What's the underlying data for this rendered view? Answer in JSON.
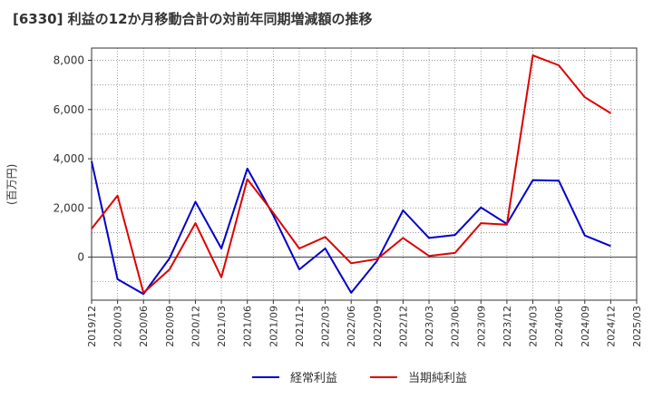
{
  "chart_data": {
    "type": "line",
    "title": "[6330]  利益の12か月移動合計の対前年同期増減額の推移",
    "ylabel": "(百万円)",
    "xlabel": "",
    "ylim": [
      -1750,
      8500
    ],
    "yticks": [
      0,
      2000,
      4000,
      6000,
      8000
    ],
    "ytick_labels": [
      "0",
      "2,000",
      "4,000",
      "6,000",
      "8,000"
    ],
    "categories": [
      "2019/12",
      "2020/03",
      "2020/06",
      "2020/09",
      "2020/12",
      "2021/03",
      "2021/06",
      "2021/09",
      "2021/12",
      "2022/03",
      "2022/06",
      "2022/09",
      "2022/12",
      "2023/03",
      "2023/06",
      "2023/09",
      "2023/12",
      "2024/03",
      "2024/06",
      "2024/09",
      "2024/12",
      "2025/03"
    ],
    "series": [
      {
        "name": "経常利益",
        "color": "#0000cc",
        "values": [
          3900,
          -900,
          -1500,
          -50,
          2250,
          350,
          3600,
          1700,
          -500,
          350,
          -1450,
          -150,
          1900,
          780,
          900,
          2020,
          1350,
          3130,
          3110,
          880,
          450,
          null
        ]
      },
      {
        "name": "当期純利益",
        "color": "#dd0000",
        "values": [
          1150,
          2500,
          -1450,
          -500,
          1380,
          -820,
          3170,
          1800,
          350,
          820,
          -250,
          -80,
          780,
          50,
          170,
          1380,
          1320,
          8200,
          7800,
          6500,
          5850,
          null
        ]
      }
    ],
    "legend_position": "bottom",
    "grid": true
  }
}
